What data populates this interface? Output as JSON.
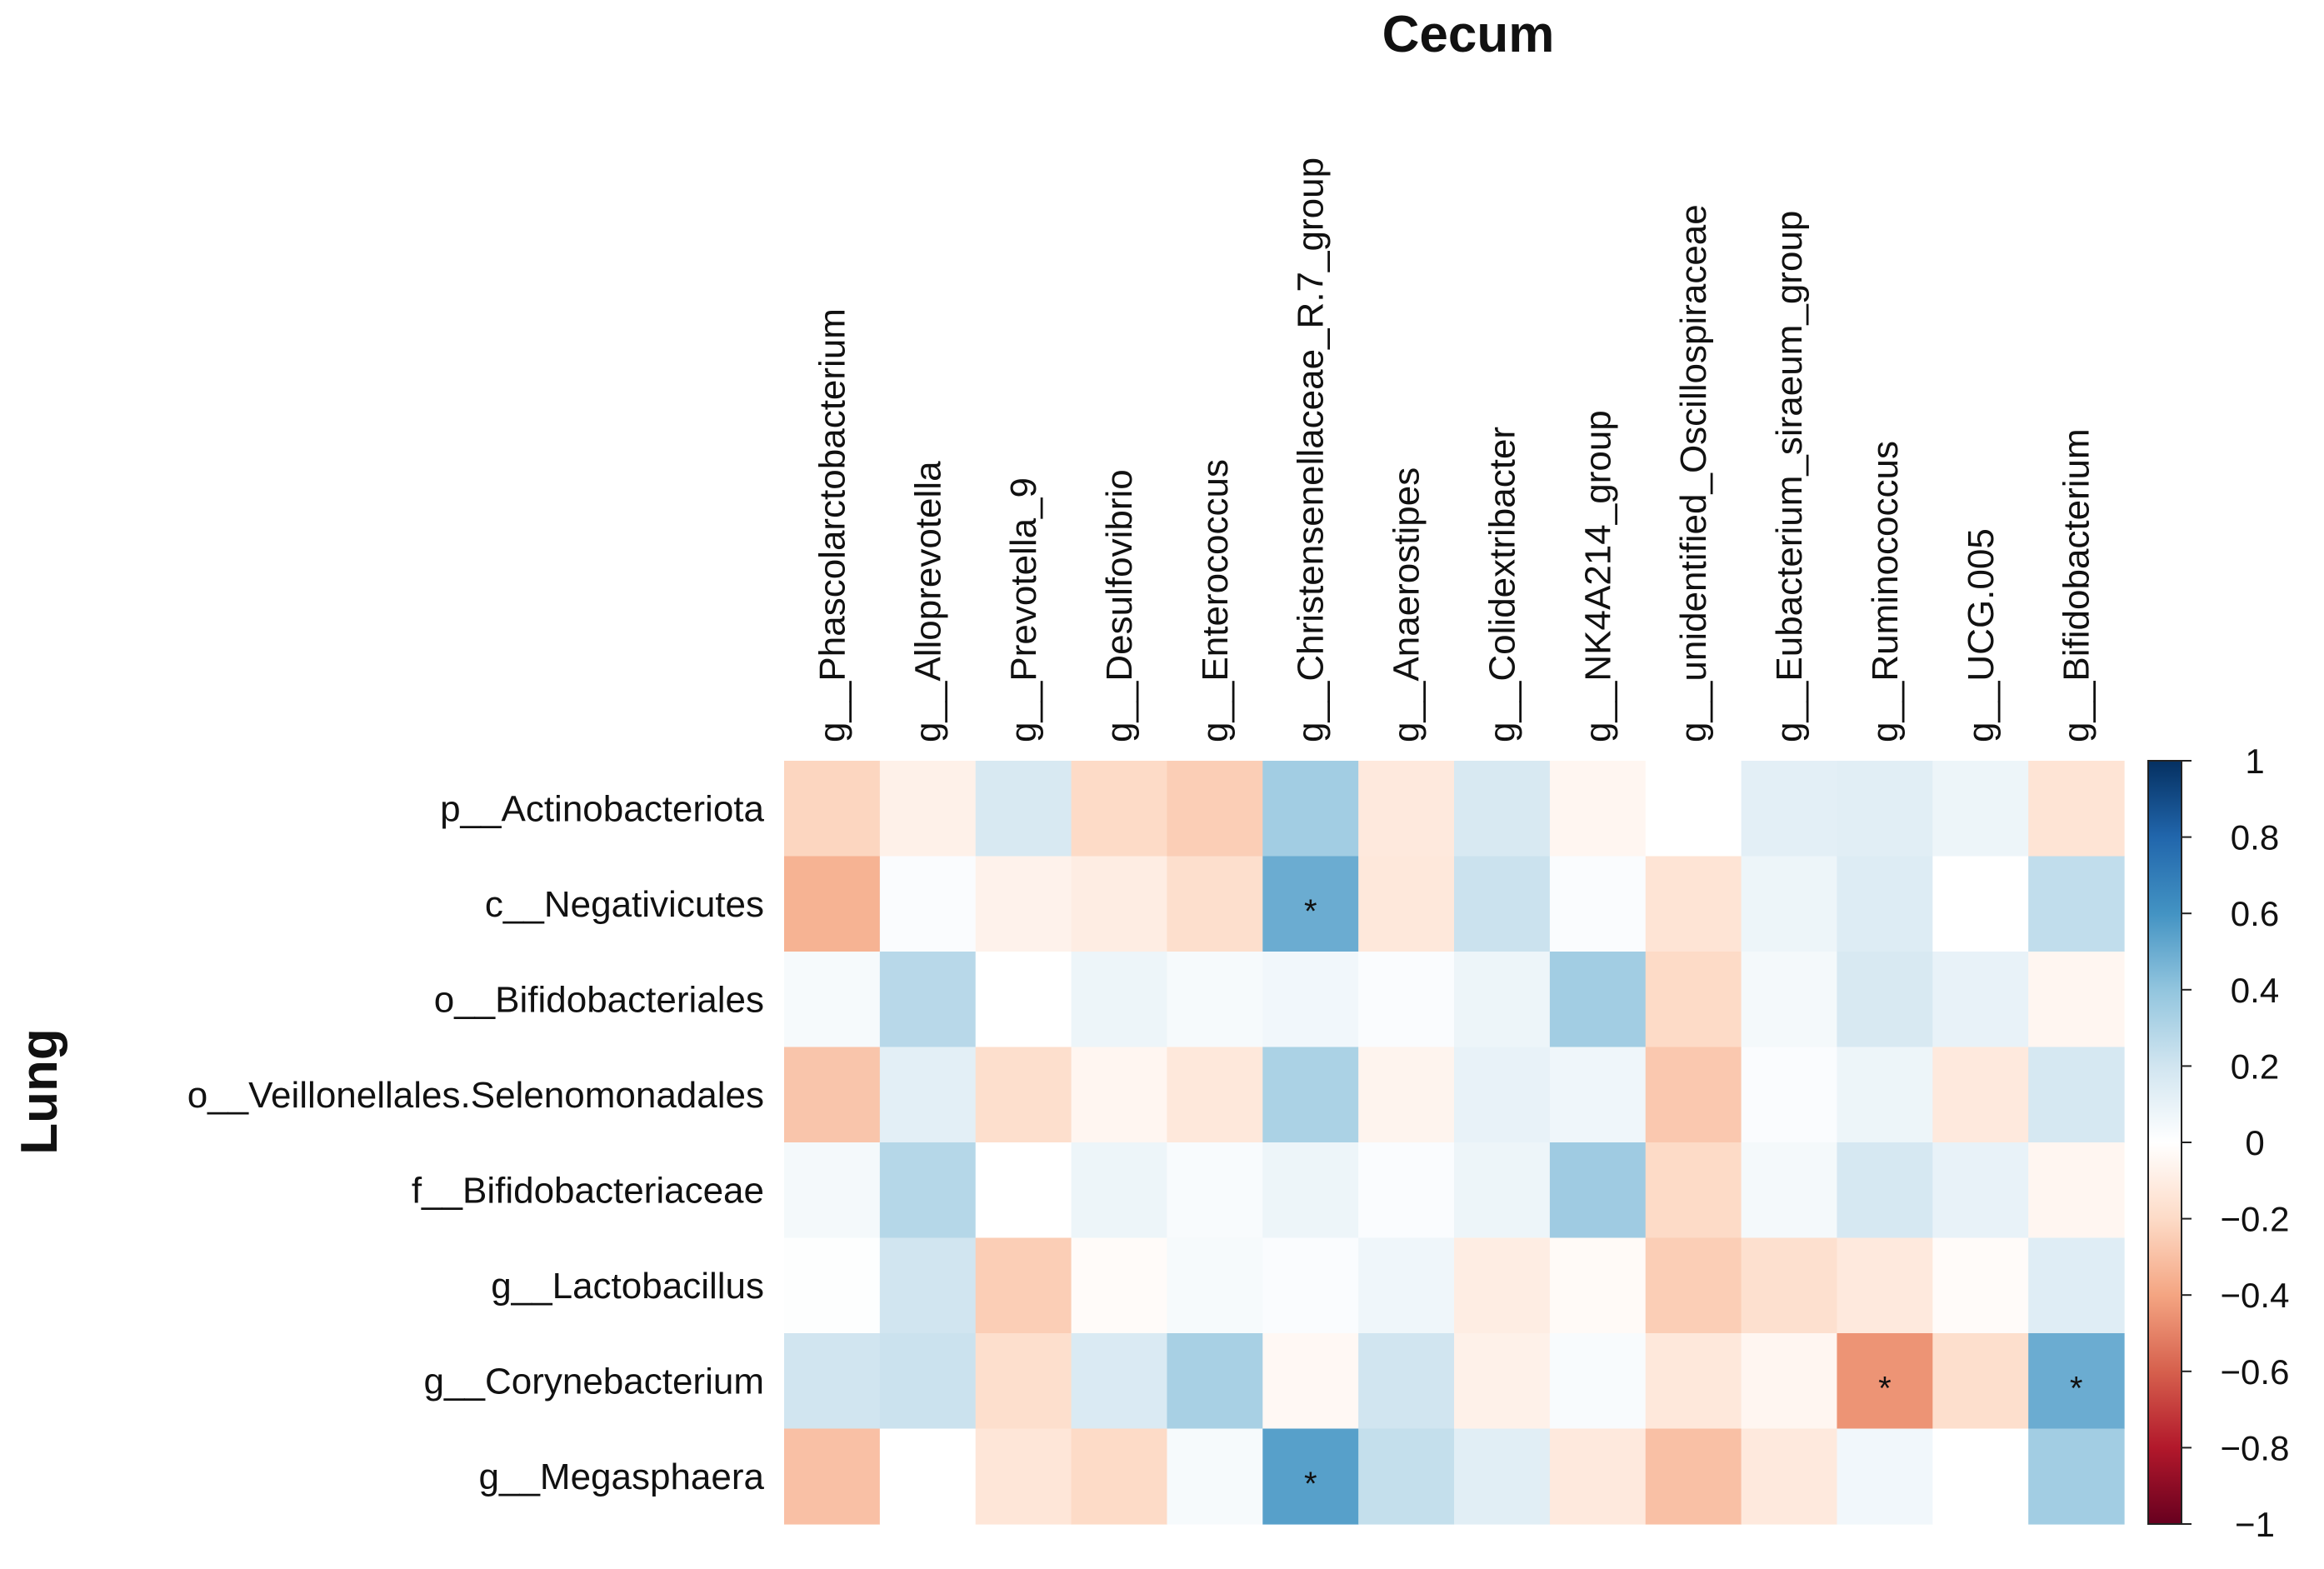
{
  "chart_data": {
    "type": "heatmap",
    "title": "Cecum",
    "ylabel": "Lung",
    "columns": [
      "g__Phascolarctobacterium",
      "g__Alloprevotella",
      "g__Prevotella_9",
      "g__Desulfovibrio",
      "g__Enterococcus",
      "g__Christensenellaceae_R.7_group",
      "g__Anaerostipes",
      "g__Colidextribacter",
      "g__NK4A214_group",
      "g__unidentified_Oscillospiraceae",
      "g__Eubacterium_siraeum_group",
      "g__Ruminococcus",
      "g__UCG.005",
      "g__Bifidobacterium"
    ],
    "rows": [
      "p__Actinobacteriota",
      "c__Negativicutes",
      "o__Bifidobacteriales",
      "o__Veillonellales.Selenomonadales",
      "f__Bifidobacteriaceae",
      "g__Lactobacillus",
      "g__Corynebacterium",
      "g__Megasphaera"
    ],
    "values": [
      [
        -0.22,
        -0.08,
        0.17,
        -0.2,
        -0.25,
        0.35,
        -0.12,
        0.17,
        -0.05,
        0.0,
        0.12,
        0.13,
        0.08,
        -0.15
      ],
      [
        -0.35,
        0.02,
        -0.07,
        -0.1,
        -0.18,
        0.5,
        -0.13,
        0.22,
        0.02,
        -0.15,
        0.08,
        0.15,
        0.0,
        0.25
      ],
      [
        0.04,
        0.28,
        0.0,
        0.08,
        0.04,
        0.06,
        0.02,
        0.08,
        0.35,
        -0.2,
        0.05,
        0.17,
        0.1,
        -0.05
      ],
      [
        -0.28,
        0.12,
        -0.18,
        -0.05,
        -0.13,
        0.32,
        -0.06,
        0.1,
        0.07,
        -0.27,
        0.02,
        0.08,
        -0.12,
        0.18
      ],
      [
        0.05,
        0.29,
        0.0,
        0.08,
        0.03,
        0.08,
        0.02,
        0.08,
        0.36,
        -0.2,
        0.05,
        0.18,
        0.1,
        -0.05
      ],
      [
        0.01,
        0.2,
        -0.25,
        -0.02,
        0.04,
        0.02,
        0.07,
        -0.1,
        -0.03,
        -0.25,
        -0.17,
        -0.12,
        -0.02,
        0.14
      ],
      [
        0.2,
        0.22,
        -0.18,
        0.16,
        0.33,
        -0.04,
        0.2,
        -0.08,
        0.03,
        -0.13,
        -0.05,
        -0.45,
        -0.18,
        0.5
      ],
      [
        -0.3,
        0.0,
        -0.14,
        -0.2,
        0.04,
        0.55,
        0.24,
        0.13,
        -0.12,
        -0.3,
        -0.12,
        0.06,
        0.0,
        0.35
      ]
    ],
    "significance": [
      [
        false,
        false,
        false,
        false,
        false,
        false,
        false,
        false,
        false,
        false,
        false,
        false,
        false,
        false
      ],
      [
        false,
        false,
        false,
        false,
        false,
        true,
        false,
        false,
        false,
        false,
        false,
        false,
        false,
        false
      ],
      [
        false,
        false,
        false,
        false,
        false,
        false,
        false,
        false,
        false,
        false,
        false,
        false,
        false,
        false
      ],
      [
        false,
        false,
        false,
        false,
        false,
        false,
        false,
        false,
        false,
        false,
        false,
        false,
        false,
        false
      ],
      [
        false,
        false,
        false,
        false,
        false,
        false,
        false,
        false,
        false,
        false,
        false,
        false,
        false,
        false
      ],
      [
        false,
        false,
        false,
        false,
        false,
        false,
        false,
        false,
        false,
        false,
        false,
        false,
        false,
        false
      ],
      [
        false,
        false,
        false,
        false,
        false,
        false,
        false,
        false,
        false,
        false,
        false,
        true,
        false,
        true
      ],
      [
        false,
        false,
        false,
        false,
        false,
        true,
        false,
        false,
        false,
        false,
        false,
        false,
        false,
        false
      ]
    ],
    "significance_marker": "*",
    "color_scale": {
      "min": -1,
      "max": 1,
      "colormap": "RdBu",
      "stops": [
        {
          "value": -1.0,
          "color": "#67001f"
        },
        {
          "value": -0.8,
          "color": "#b2182b"
        },
        {
          "value": -0.6,
          "color": "#d6604d"
        },
        {
          "value": -0.4,
          "color": "#f4a582"
        },
        {
          "value": -0.2,
          "color": "#fddbc7"
        },
        {
          "value": 0.0,
          "color": "#ffffff"
        },
        {
          "value": 0.2,
          "color": "#d1e5f0"
        },
        {
          "value": 0.4,
          "color": "#92c5de"
        },
        {
          "value": 0.6,
          "color": "#4393c3"
        },
        {
          "value": 0.8,
          "color": "#2166ac"
        },
        {
          "value": 1.0,
          "color": "#053061"
        }
      ],
      "ticks": [
        "1",
        "0.8",
        "0.6",
        "0.4",
        "0.2",
        "0",
        "−0.2",
        "−0.4",
        "−0.6",
        "−0.8",
        "−1"
      ]
    }
  }
}
